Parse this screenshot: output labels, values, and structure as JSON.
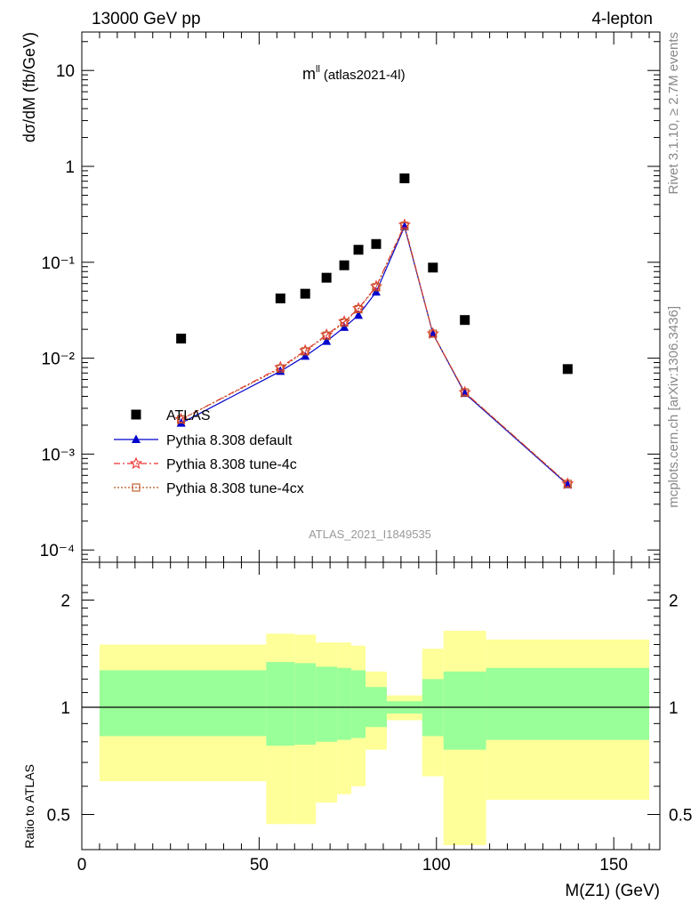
{
  "header": {
    "left": "13000 GeV pp",
    "right": "4-lepton",
    "side_top": "Rivet 3.1.10, ≥ 2.7M events",
    "side_bottom": "mcplots.cern.ch [arXiv:1306.3436]",
    "plot_label_main": "m",
    "plot_label_sup": "ll",
    "plot_label_sub": "(atlas2021-4l)",
    "analysis_id": "ATLAS_2021_I1849535"
  },
  "chart_data": {
    "type": "scatter",
    "xlabel": "M(Z1) (GeV)",
    "ylabel": "dσ/dM (fb/GeV)",
    "ratio_ylabel": "Ratio to ATLAS",
    "xlim": [
      0,
      163
    ],
    "ylim": [
      0.0001,
      25
    ],
    "yscale": "log",
    "ratio_ylim": [
      0.4,
      2.3
    ],
    "x_ticks": [
      "0",
      "50",
      "100",
      "150"
    ],
    "y_ticks": [
      "10⁻⁴",
      "10⁻³",
      "10⁻²",
      "10⁻¹",
      "1",
      "10"
    ],
    "ratio_ticks": [
      "0.5",
      "1",
      "2"
    ],
    "legend_position": "lower-left",
    "colors": {
      "atlas": "#000000",
      "default": "#0000cc",
      "tune4c": "#ee3333",
      "tune4cx": "#bb5522",
      "band_outer": "#ffff99",
      "band_inner": "#99ff99"
    },
    "series": [
      {
        "name": "ATLAS",
        "x": [
          28,
          56,
          63,
          69,
          74,
          78,
          83,
          91,
          99,
          108,
          137
        ],
        "y": [
          0.016,
          0.042,
          0.047,
          0.069,
          0.093,
          0.135,
          0.155,
          0.75,
          0.088,
          0.025,
          0.0077
        ]
      },
      {
        "name": "Pythia 8.308 default",
        "x": [
          28,
          56,
          63,
          69,
          74,
          78,
          83,
          91,
          99,
          108,
          137
        ],
        "y": [
          0.0021,
          0.0073,
          0.0105,
          0.015,
          0.021,
          0.028,
          0.049,
          0.235,
          0.018,
          0.0043,
          0.00048
        ]
      },
      {
        "name": "Pythia 8.308 tune-4c",
        "x": [
          28,
          56,
          63,
          69,
          74,
          78,
          83,
          91,
          99,
          108,
          137
        ],
        "y": [
          0.0023,
          0.008,
          0.012,
          0.0175,
          0.024,
          0.033,
          0.056,
          0.245,
          0.018,
          0.0044,
          0.00049
        ]
      },
      {
        "name": "Pythia 8.308 tune-4cx",
        "x": [
          28,
          56,
          63,
          69,
          74,
          78,
          83,
          91,
          99,
          108,
          137
        ],
        "y": [
          0.0023,
          0.0078,
          0.0118,
          0.0172,
          0.0235,
          0.0325,
          0.055,
          0.24,
          0.018,
          0.0044,
          0.00049
        ]
      }
    ],
    "ratio_bands": [
      {
        "x0": 5,
        "x1": 52,
        "outer": [
          0.62,
          1.5
        ],
        "inner": [
          0.83,
          1.27
        ]
      },
      {
        "x0": 52,
        "x1": 60,
        "outer": [
          0.47,
          1.61
        ],
        "inner": [
          0.78,
          1.34
        ]
      },
      {
        "x0": 60,
        "x1": 66,
        "outer": [
          0.47,
          1.6
        ],
        "inner": [
          0.785,
          1.33
        ]
      },
      {
        "x0": 66,
        "x1": 72,
        "outer": [
          0.54,
          1.52
        ],
        "inner": [
          0.8,
          1.3
        ]
      },
      {
        "x0": 72,
        "x1": 76,
        "outer": [
          0.57,
          1.52
        ],
        "inner": [
          0.81,
          1.29
        ]
      },
      {
        "x0": 76,
        "x1": 80,
        "outer": [
          0.6,
          1.49
        ],
        "inner": [
          0.82,
          1.27
        ]
      },
      {
        "x0": 80,
        "x1": 86,
        "outer": [
          0.76,
          1.26
        ],
        "inner": [
          0.88,
          1.14
        ]
      },
      {
        "x0": 86,
        "x1": 96,
        "outer": [
          0.92,
          1.08
        ],
        "inner": [
          0.96,
          1.04
        ]
      },
      {
        "x0": 96,
        "x1": 102,
        "outer": [
          0.64,
          1.46
        ],
        "inner": [
          0.83,
          1.2
        ]
      },
      {
        "x0": 102,
        "x1": 114,
        "outer": [
          0.41,
          1.64
        ],
        "inner": [
          0.76,
          1.26
        ]
      },
      {
        "x0": 114,
        "x1": 160,
        "outer": [
          0.55,
          1.55
        ],
        "inner": [
          0.81,
          1.29
        ]
      }
    ]
  }
}
